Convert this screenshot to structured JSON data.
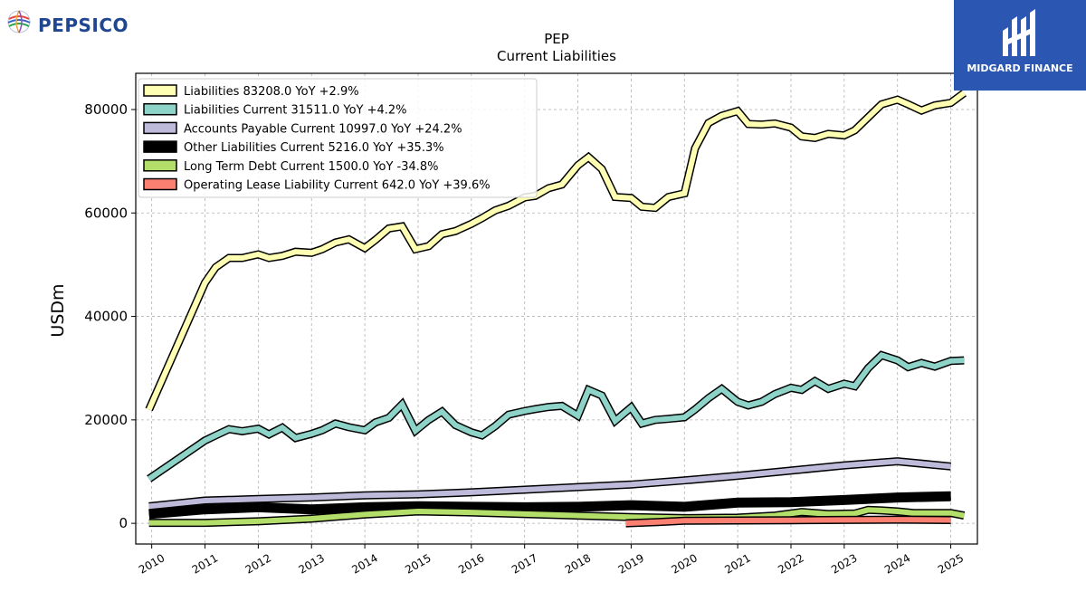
{
  "branding": {
    "left_logo_text": "PEPSICO",
    "right_logo_text": "MIDGARD FINANCE"
  },
  "chart_data": {
    "type": "line",
    "title": "PEP",
    "subtitle": "Current  Liabilities",
    "ylabel": "USDm",
    "xlabel": "",
    "xlim": [
      2009.7,
      2025.5
    ],
    "ylim": [
      -4000,
      87000
    ],
    "x_ticks": [
      "2010",
      "2011",
      "2012",
      "2013",
      "2014",
      "2015",
      "2016",
      "2017",
      "2018",
      "2019",
      "2020",
      "2021",
      "2022",
      "2023",
      "2024",
      "2025"
    ],
    "y_ticks": [
      0,
      20000,
      40000,
      60000,
      80000
    ],
    "y_tick_labels": [
      "0",
      "20000",
      "40000",
      "60000",
      "80000"
    ],
    "grid": true,
    "legend_position": "top-left",
    "series": [
      {
        "name": "Liabilities  83208.0 YoY +2.9%",
        "color": "#ffffb3",
        "x": [
          2009.95,
          2011.0,
          2011.2,
          2011.45,
          2011.7,
          2012.0,
          2012.2,
          2012.45,
          2012.7,
          2013.0,
          2013.2,
          2013.45,
          2013.7,
          2014.0,
          2014.2,
          2014.45,
          2014.7,
          2014.95,
          2015.2,
          2015.45,
          2015.7,
          2016.0,
          2016.2,
          2016.45,
          2016.7,
          2017.0,
          2017.2,
          2017.45,
          2017.7,
          2018.0,
          2018.2,
          2018.45,
          2018.7,
          2019.0,
          2019.2,
          2019.45,
          2019.7,
          2020.0,
          2020.2,
          2020.45,
          2020.7,
          2021.0,
          2021.2,
          2021.45,
          2021.7,
          2022.0,
          2022.2,
          2022.45,
          2022.7,
          2023.0,
          2023.2,
          2023.45,
          2023.7,
          2024.0,
          2024.2,
          2024.45,
          2024.7,
          2025.0,
          2025.25
        ],
        "y": [
          22000,
          46500,
          49500,
          51300,
          51300,
          52000,
          51300,
          51700,
          52500,
          52300,
          53000,
          54300,
          54900,
          53200,
          54800,
          57000,
          57400,
          53000,
          53600,
          55900,
          56500,
          57900,
          59000,
          60500,
          61400,
          63000,
          63300,
          64800,
          65500,
          69200,
          70800,
          68500,
          63100,
          62900,
          61200,
          61000,
          63100,
          63800,
          72500,
          77400,
          78800,
          79700,
          77200,
          77100,
          77300,
          76500,
          74800,
          74500,
          75300,
          75000,
          76000,
          78500,
          81000,
          81900,
          81000,
          79800,
          80800,
          81300,
          83208
        ]
      },
      {
        "name": "Liabilities Current  31511.0 YoY +4.2%",
        "color": "#8dd3c7",
        "x": [
          2009.95,
          2011.0,
          2011.2,
          2011.45,
          2011.7,
          2012.0,
          2012.2,
          2012.45,
          2012.7,
          2013.0,
          2013.2,
          2013.45,
          2013.7,
          2014.0,
          2014.2,
          2014.45,
          2014.7,
          2014.95,
          2015.2,
          2015.45,
          2015.7,
          2016.0,
          2016.2,
          2016.45,
          2016.7,
          2017.0,
          2017.2,
          2017.45,
          2017.7,
          2018.0,
          2018.2,
          2018.45,
          2018.7,
          2019.0,
          2019.2,
          2019.45,
          2019.7,
          2020.0,
          2020.2,
          2020.45,
          2020.7,
          2021.0,
          2021.2,
          2021.45,
          2021.7,
          2022.0,
          2022.2,
          2022.45,
          2022.7,
          2023.0,
          2023.2,
          2023.45,
          2023.7,
          2024.0,
          2024.2,
          2024.45,
          2024.7,
          2025.0,
          2025.25
        ],
        "y": [
          8600,
          16000,
          17000,
          18200,
          17800,
          18300,
          17200,
          18500,
          16500,
          17300,
          18000,
          19300,
          18600,
          18000,
          19500,
          20400,
          23000,
          17900,
          20000,
          21600,
          19000,
          17600,
          17000,
          18800,
          21000,
          21700,
          22100,
          22500,
          22700,
          20800,
          25800,
          24700,
          19800,
          22400,
          19300,
          20000,
          20200,
          20500,
          22000,
          24200,
          26000,
          23500,
          22800,
          23500,
          25000,
          26200,
          25800,
          27500,
          26000,
          27000,
          26500,
          30000,
          32500,
          31500,
          30200,
          31000,
          30300,
          31400,
          31511
        ]
      },
      {
        "name": "Accounts Payable Current  10997.0 YoY +24.2%",
        "color": "#bebada",
        "x": [
          2009.95,
          2011.0,
          2012.0,
          2013.0,
          2014.0,
          2015.0,
          2016.0,
          2017.0,
          2018.0,
          2019.0,
          2020.0,
          2021.0,
          2022.0,
          2023.0,
          2024.0,
          2025.0
        ],
        "y": [
          3300,
          4400,
          4700,
          5000,
          5400,
          5600,
          6000,
          6500,
          7000,
          7500,
          8300,
          9200,
          10200,
          11200,
          12000,
          10997
        ]
      },
      {
        "name": "Other Liabilities Current  5216.0 YoY +35.3%",
        "color": "#000000",
        "x": [
          2009.95,
          2011.0,
          2012.0,
          2013.0,
          2014.0,
          2015.0,
          2016.0,
          2017.0,
          2018.0,
          2019.0,
          2020.0,
          2021.0,
          2022.0,
          2023.0,
          2024.0,
          2025.0
        ],
        "y": [
          1800,
          2700,
          3100,
          2700,
          3100,
          3300,
          3200,
          3100,
          3200,
          3500,
          3200,
          4000,
          4100,
          4500,
          5000,
          5216
        ]
      },
      {
        "name": "Long Term Debt Current  1500.0 YoY -34.8%",
        "color": "#b3de69",
        "x": [
          2009.95,
          2011.0,
          2012.0,
          2013.0,
          2014.0,
          2015.0,
          2016.0,
          2017.0,
          2018.0,
          2019.0,
          2020.0,
          2021.0,
          2021.7,
          2022.2,
          2022.7,
          2023.2,
          2023.45,
          2023.7,
          2024.0,
          2024.3,
          2025.0,
          2025.25
        ],
        "y": [
          100,
          100,
          400,
          900,
          1700,
          2300,
          2100,
          1800,
          1500,
          1200,
          1000,
          1100,
          1500,
          2200,
          1800,
          1900,
          2600,
          2500,
          2300,
          2000,
          2000,
          1500
        ]
      },
      {
        "name": "Operating Lease Liability Current  642.0 YoY +39.6%",
        "color": "#fb8072",
        "x": [
          2018.9,
          2019.5,
          2020.0,
          2021.0,
          2022.0,
          2023.0,
          2024.0,
          2025.0
        ],
        "y": [
          0,
          250,
          500,
          550,
          600,
          650,
          700,
          642
        ]
      }
    ]
  }
}
